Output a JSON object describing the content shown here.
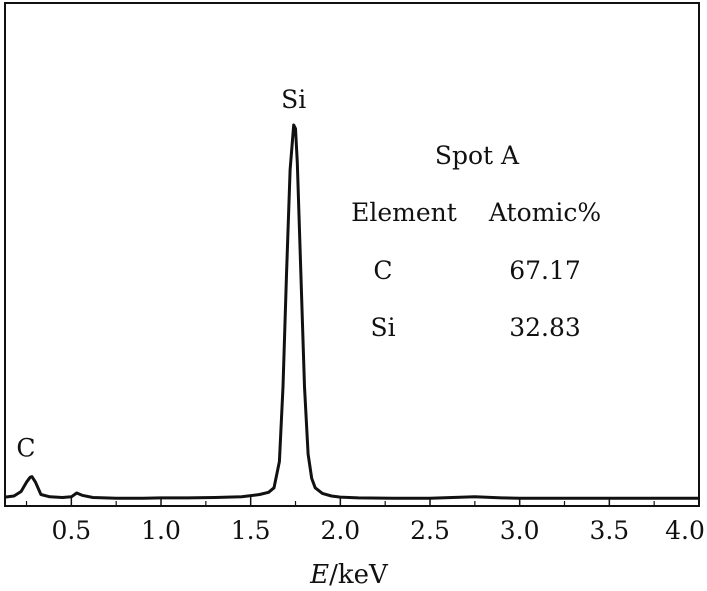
{
  "chart_data": {
    "type": "line",
    "title": "",
    "xlabel": {
      "italic": "E",
      "rest": "/keV"
    },
    "ylabel": "",
    "xlim": [
      0.13,
      4.0
    ],
    "ylim": [
      0,
      1
    ],
    "grid": false,
    "legend": "none",
    "x_ticks": [
      "0.5",
      "1.0",
      "1.5",
      "2.0",
      "2.5",
      "3.0",
      "3.5",
      "4.0"
    ],
    "x_tick_values": [
      0.5,
      1.0,
      1.5,
      2.0,
      2.5,
      3.0,
      3.5,
      4.0
    ],
    "series": [
      {
        "color": "#111111",
        "x": [
          0.13,
          0.18,
          0.22,
          0.25,
          0.27,
          0.28,
          0.3,
          0.33,
          0.38,
          0.45,
          0.5,
          0.53,
          0.56,
          0.62,
          0.75,
          0.9,
          1.0,
          1.15,
          1.3,
          1.45,
          1.55,
          1.6,
          1.63,
          1.66,
          1.68,
          1.7,
          1.72,
          1.74,
          1.75,
          1.76,
          1.78,
          1.8,
          1.82,
          1.84,
          1.86,
          1.9,
          1.95,
          2.0,
          2.1,
          2.3,
          2.5,
          2.75,
          2.9,
          3.0,
          3.2,
          3.5,
          3.8,
          4.0
        ],
        "y": [
          0.005,
          0.008,
          0.02,
          0.045,
          0.058,
          0.06,
          0.045,
          0.012,
          0.006,
          0.004,
          0.006,
          0.016,
          0.01,
          0.004,
          0.002,
          0.002,
          0.003,
          0.003,
          0.004,
          0.006,
          0.012,
          0.018,
          0.03,
          0.1,
          0.3,
          0.6,
          0.88,
          1.0,
          0.99,
          0.9,
          0.6,
          0.3,
          0.12,
          0.055,
          0.03,
          0.015,
          0.008,
          0.005,
          0.003,
          0.002,
          0.002,
          0.006,
          0.003,
          0.002,
          0.002,
          0.002,
          0.002,
          0.002
        ]
      }
    ],
    "annotations": [
      {
        "text": "Si",
        "x": 1.74,
        "y": 1.0
      },
      {
        "text": "C",
        "x": 0.28,
        "y": 0.06
      }
    ],
    "inset_table": {
      "title": "Spot A",
      "headers": [
        "Element",
        "Atomic%"
      ],
      "rows": [
        [
          "C",
          "67.17"
        ],
        [
          "Si",
          "32.83"
        ]
      ]
    }
  }
}
